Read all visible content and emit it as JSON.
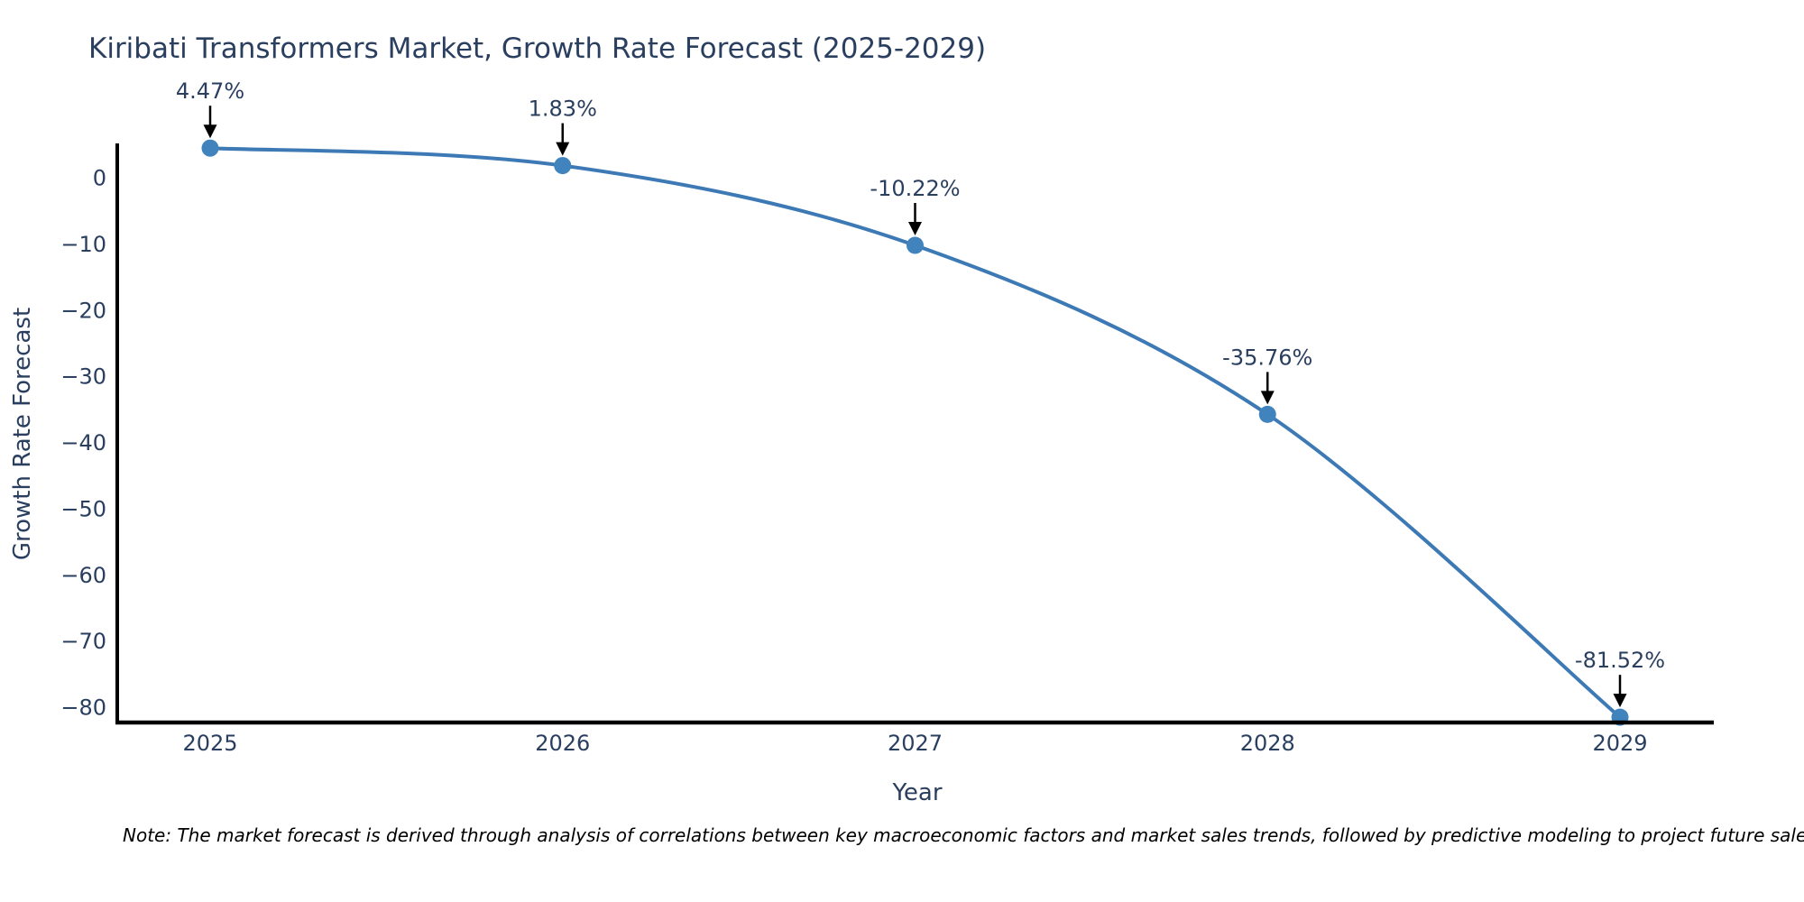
{
  "chart_data": {
    "type": "line",
    "title": "Kiribati Transformers Market, Growth Rate Forecast (2025-2029)",
    "xlabel": "Year",
    "ylabel": "Growth Rate Forecast",
    "x": [
      2025,
      2026,
      2027,
      2028,
      2029
    ],
    "y": [
      4.47,
      1.83,
      -10.22,
      -35.76,
      -81.52
    ],
    "point_labels": [
      "4.47%",
      "1.83%",
      "-10.22%",
      "-35.76%",
      "-81.52%"
    ],
    "x_tick_labels": [
      "2025",
      "2026",
      "2027",
      "2028",
      "2029"
    ],
    "y_tick_values": [
      0,
      -10,
      -20,
      -30,
      -40,
      -50,
      -60,
      -70,
      -80
    ],
    "y_tick_labels": [
      "0",
      "−10",
      "−20",
      "−30",
      "−40",
      "−50",
      "−60",
      "−70",
      "−80"
    ],
    "xlim": [
      2024.74,
      2029.28
    ],
    "ylim": [
      -82.3,
      5.1
    ],
    "line_shape": "spline",
    "grid": false,
    "legend": "none",
    "colors": {
      "line": "#3d7ab5",
      "marker": "#4083bd",
      "axis": "#000000",
      "tick_text": "#2a3f5f",
      "annotation_text": "#2a3f5f",
      "annotation_arrow": "#000000",
      "background": "#ffffff"
    }
  },
  "note": "Note: The market forecast is derived through analysis of correlations between key macroeconomic factors and market sales trends, followed by predictive modeling to project future sales"
}
